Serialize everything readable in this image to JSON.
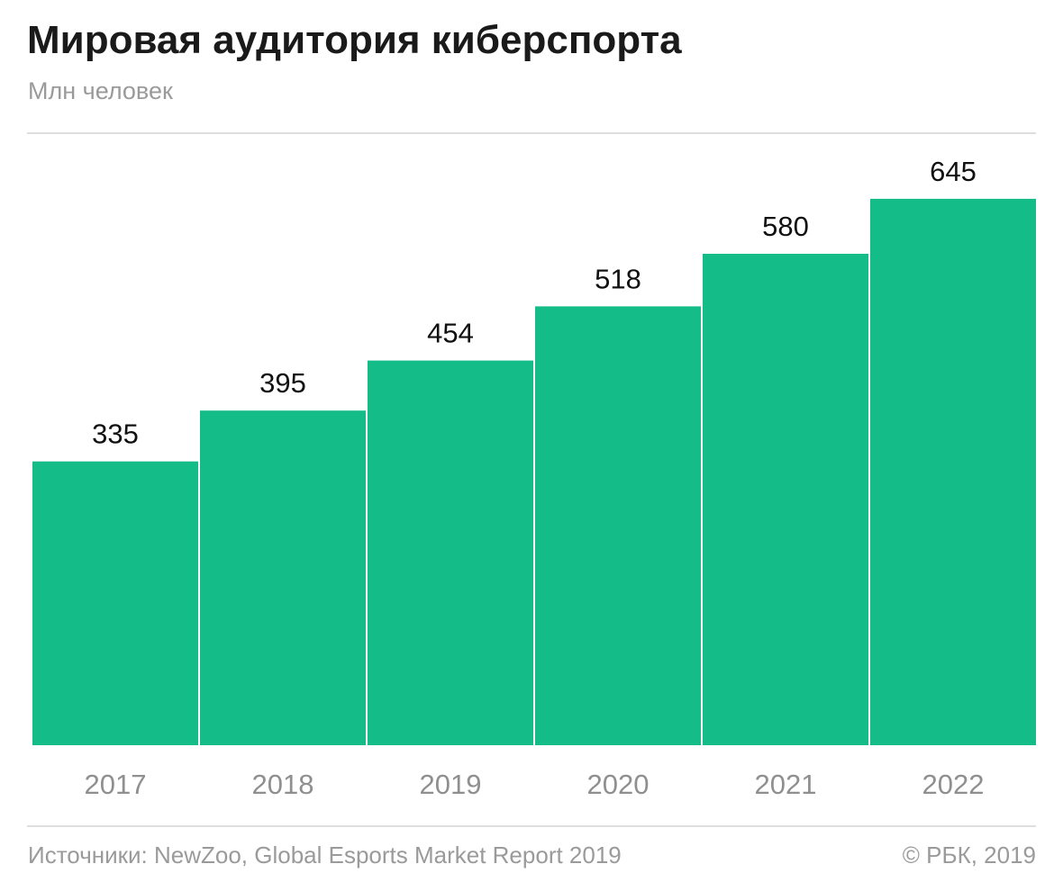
{
  "header": {
    "title": "Мировая аудитория киберспорта",
    "subtitle": "Млн человек"
  },
  "footer": {
    "source": "Источники: NewZoo, Global Esports Market Report 2019",
    "copyright": "© РБК, 2019"
  },
  "colors": {
    "bar": "#14bc88",
    "value_label": "#111111",
    "tick_label": "#8f8f8f",
    "rule": "#dedede"
  },
  "chart_data": {
    "type": "bar",
    "title": "Мировая аудитория киберспорта",
    "subtitle": "Млн человек",
    "categories": [
      "2017",
      "2018",
      "2019",
      "2020",
      "2021",
      "2022"
    ],
    "values": [
      335,
      395,
      454,
      518,
      580,
      645
    ],
    "ylim": [
      0,
      700
    ],
    "grid": false,
    "legend": "none"
  }
}
